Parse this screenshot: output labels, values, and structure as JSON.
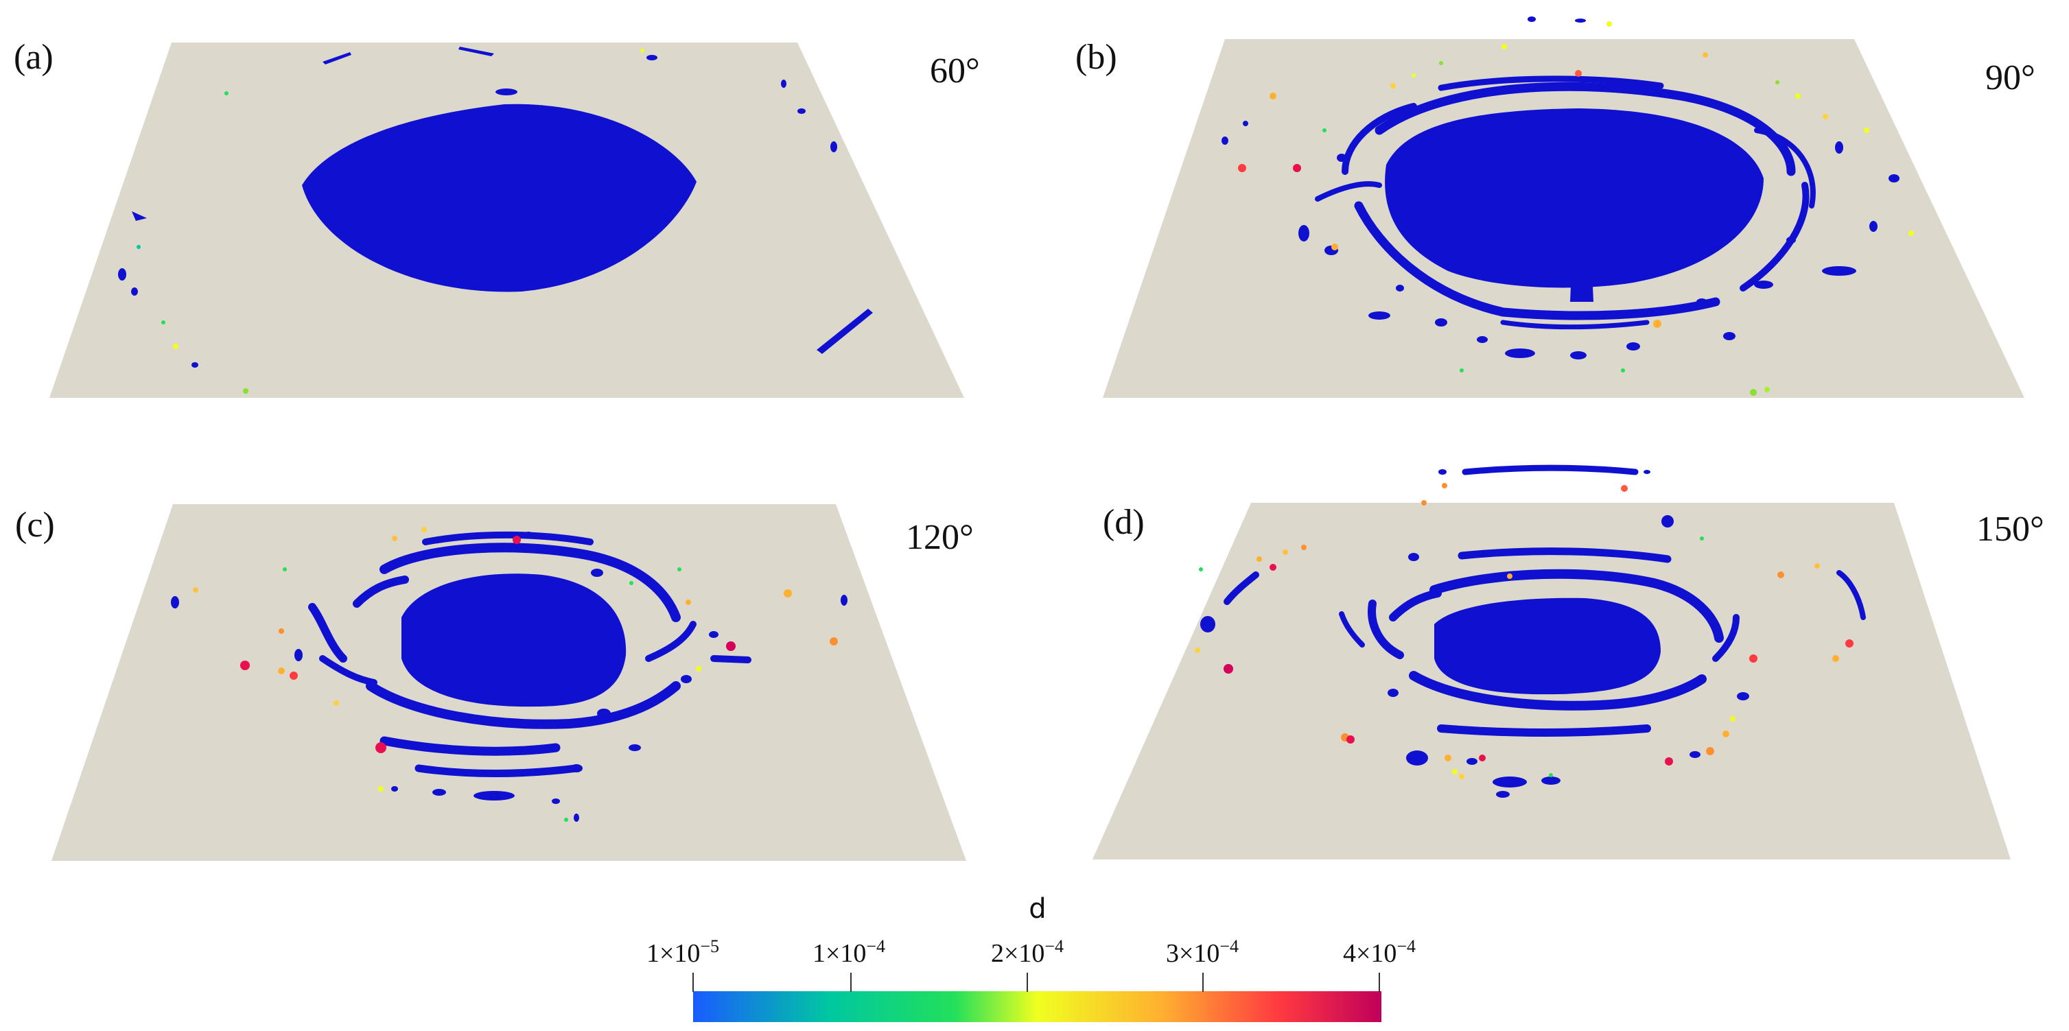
{
  "figure": {
    "panels": [
      {
        "label": "(a)",
        "angle": "60°"
      },
      {
        "label": "(b)",
        "angle": "90°"
      },
      {
        "label": "(c)",
        "angle": "120°"
      },
      {
        "label": "(d)",
        "angle": "150°"
      }
    ],
    "colorbar": {
      "title": "d",
      "ticks": [
        {
          "mant": "1×10",
          "exp": "−5"
        },
        {
          "mant": "1×10",
          "exp": "−4"
        },
        {
          "mant": "2×10",
          "exp": "−4"
        },
        {
          "mant": "3×10",
          "exp": "−4"
        },
        {
          "mant": "4×10",
          "exp": "−4"
        }
      ]
    }
  },
  "colors": {
    "plate": "#ddd8cc",
    "surface": "#1010d0",
    "colorbar_stops": [
      "#1a5cff",
      "#00c8a0",
      "#22e05a",
      "#f0ff20",
      "#ffb030",
      "#ff3a40",
      "#c0005a"
    ]
  }
}
